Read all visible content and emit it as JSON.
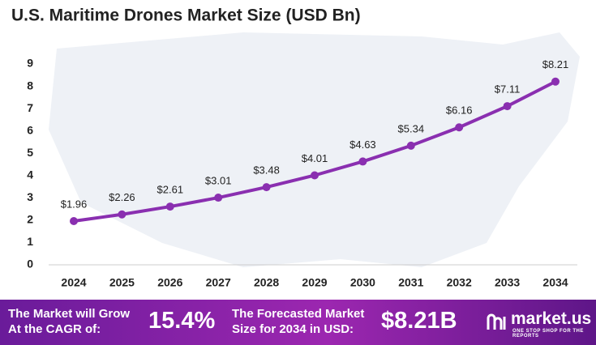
{
  "chart_data": {
    "type": "line",
    "title": "U.S. Maritime Drones Market Size (USD Bn)",
    "categories": [
      "2024",
      "2025",
      "2026",
      "2027",
      "2028",
      "2029",
      "2030",
      "2031",
      "2032",
      "2033",
      "2034"
    ],
    "values": [
      1.96,
      2.26,
      2.61,
      3.01,
      3.48,
      4.01,
      4.63,
      5.34,
      6.16,
      7.11,
      8.21
    ],
    "value_labels": [
      "$1.96",
      "$2.26",
      "$2.61",
      "$3.01",
      "$3.48",
      "$4.01",
      "$4.63",
      "$5.34",
      "$6.16",
      "$7.11",
      "$8.21"
    ],
    "color": "#8a2fb0",
    "ylim": [
      0,
      9
    ],
    "yticks": [
      0,
      1,
      2,
      3,
      4,
      5,
      6,
      7,
      8,
      9
    ],
    "grid": false
  },
  "footer": {
    "cagr_text": [
      "The Market will Grow",
      "At the CAGR of:"
    ],
    "cagr_value": "15.4%",
    "forecast_text": [
      "The Forecasted Market",
      "Size for 2034 in USD:"
    ],
    "forecast_value": "$8.21B",
    "brand": "market.us",
    "tagline": "ONE STOP SHOP FOR THE REPORTS"
  }
}
